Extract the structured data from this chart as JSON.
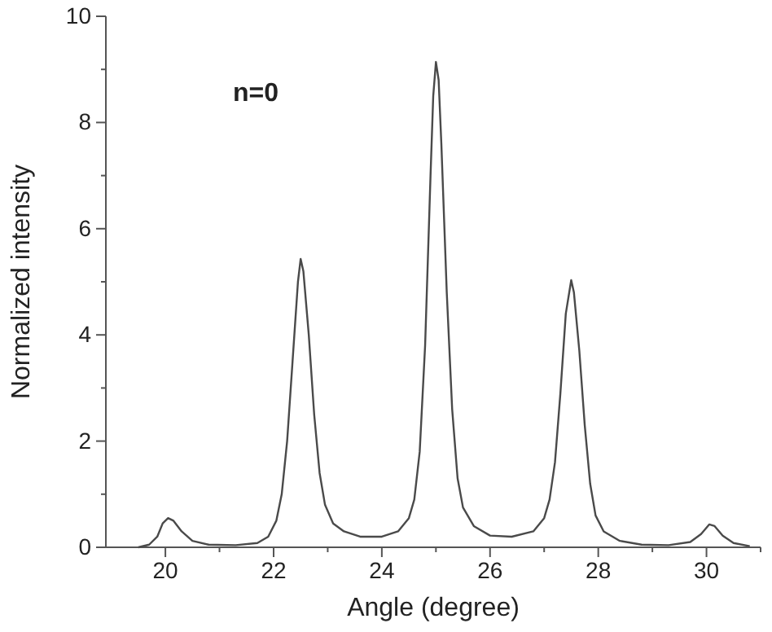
{
  "chart_data": {
    "type": "line",
    "xlabel": "Angle (degree)",
    "ylabel": "Normalized intensity",
    "annotations": [
      "n=0"
    ],
    "xlim": [
      18.9,
      31
    ],
    "ylim": [
      0,
      10
    ],
    "xticks": [
      20,
      {
        "value": 21,
        "label": null
      },
      22,
      {
        "value": 23,
        "label": null
      },
      24,
      {
        "value": 25,
        "label": null
      },
      26,
      {
        "value": 27,
        "label": null
      },
      28,
      {
        "value": 29,
        "label": null
      },
      30,
      {
        "value": 31,
        "label": null
      }
    ],
    "yticks": [
      0,
      {
        "value": 1,
        "label": null
      },
      2,
      {
        "value": 3,
        "label": null
      },
      4,
      {
        "value": 5,
        "label": null
      },
      6,
      {
        "value": 7,
        "label": null
      },
      8,
      {
        "value": 9,
        "label": null
      },
      10
    ],
    "grid": false,
    "marker": "none",
    "line_style": "solid",
    "series": [
      {
        "color": "#4a4a4a",
        "x": [
          19.5,
          19.7,
          19.85,
          19.95,
          20.05,
          20.15,
          20.3,
          20.5,
          20.8,
          21.3,
          21.7,
          21.9,
          22.05,
          22.15,
          22.25,
          22.35,
          22.45,
          22.5,
          22.55,
          22.65,
          22.75,
          22.85,
          22.95,
          23.1,
          23.3,
          23.6,
          24.0,
          24.3,
          24.5,
          24.6,
          24.7,
          24.8,
          24.9,
          24.95,
          25.0,
          25.05,
          25.1,
          25.2,
          25.3,
          25.4,
          25.5,
          25.7,
          26.0,
          26.4,
          26.8,
          27.0,
          27.1,
          27.2,
          27.3,
          27.4,
          27.5,
          27.55,
          27.65,
          27.75,
          27.85,
          27.95,
          28.1,
          28.4,
          28.8,
          29.3,
          29.7,
          29.9,
          30.05,
          30.15,
          30.3,
          30.5,
          30.8
        ],
        "values": [
          0,
          0.05,
          0.2,
          0.45,
          0.55,
          0.5,
          0.3,
          0.12,
          0.05,
          0.04,
          0.08,
          0.2,
          0.5,
          1.0,
          2.0,
          3.5,
          5.0,
          5.43,
          5.2,
          4.0,
          2.5,
          1.4,
          0.8,
          0.45,
          0.3,
          0.2,
          0.2,
          0.3,
          0.55,
          0.9,
          1.8,
          3.8,
          7.0,
          8.5,
          9.14,
          8.8,
          7.6,
          4.8,
          2.6,
          1.3,
          0.75,
          0.4,
          0.22,
          0.2,
          0.3,
          0.55,
          0.9,
          1.6,
          2.9,
          4.4,
          5.03,
          4.8,
          3.7,
          2.3,
          1.2,
          0.6,
          0.3,
          0.12,
          0.05,
          0.04,
          0.1,
          0.25,
          0.43,
          0.4,
          0.22,
          0.08,
          0.02
        ]
      }
    ]
  }
}
